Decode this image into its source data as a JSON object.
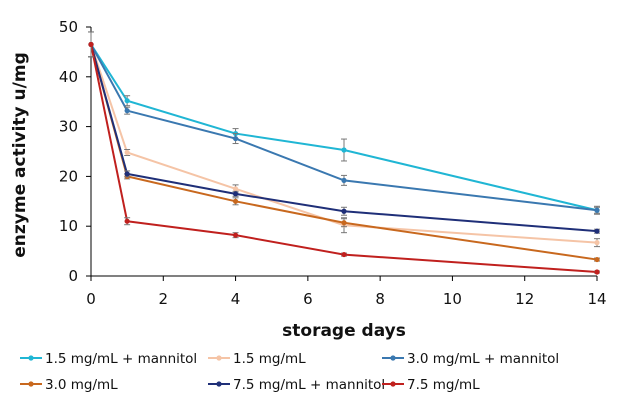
{
  "chart_data": {
    "type": "line",
    "title": "",
    "xlabel": "storage days",
    "ylabel": "enzyme activity u/mg",
    "xlim": [
      0,
      14
    ],
    "ylim": [
      0,
      50
    ],
    "x_ticks": [
      "0",
      "2",
      "4",
      "6",
      "8",
      "10",
      "12",
      "14"
    ],
    "y_ticks": [
      "0",
      "10",
      "20",
      "30",
      "40",
      "50"
    ],
    "grid": false,
    "legend_position": "bottom",
    "x": [
      0,
      1,
      4,
      7,
      14
    ],
    "series": [
      {
        "name": "1.5 mg/mL + mannitol",
        "color": "#20B6D4",
        "values": [
          46.5,
          35.2,
          28.6,
          25.3,
          13.2
        ],
        "errors": [
          2.5,
          1.0,
          1.0,
          2.2,
          0.8
        ]
      },
      {
        "name": "1.5 mg/mL",
        "color": "#F5C4A6",
        "values": [
          46.5,
          24.8,
          17.5,
          10.2,
          6.7
        ],
        "errors": [
          2.5,
          0.6,
          0.8,
          1.5,
          0.8
        ]
      },
      {
        "name": "3.0 mg/mL + mannitol",
        "color": "#3A78B0",
        "values": [
          46.5,
          33.2,
          27.6,
          19.2,
          13.2
        ],
        "errors": [
          2.5,
          0.7,
          1.0,
          1.0,
          0.6
        ]
      },
      {
        "name": "3.0 mg/mL",
        "color": "#C8681E",
        "values": [
          46.5,
          20.0,
          15.0,
          10.7,
          3.3
        ],
        "errors": [
          2.5,
          0.5,
          0.7,
          0.8,
          0.3
        ]
      },
      {
        "name": "7.5 mg/mL + mannitol",
        "color": "#1F2F78",
        "values": [
          46.5,
          20.5,
          16.5,
          13.0,
          9.0
        ],
        "errors": [
          2.5,
          0.6,
          0.5,
          0.8,
          0.4
        ]
      },
      {
        "name": "7.5 mg/mL",
        "color": "#C0201E",
        "values": [
          46.5,
          11.0,
          8.2,
          4.3,
          0.8
        ],
        "errors": [
          2.5,
          0.7,
          0.5,
          0.3,
          0.2
        ]
      }
    ]
  }
}
